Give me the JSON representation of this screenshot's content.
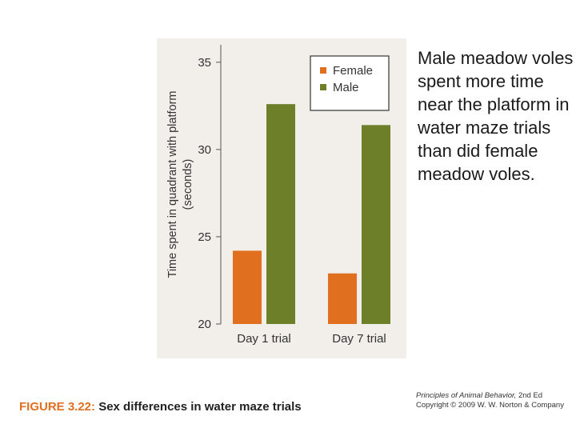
{
  "side_text": "Male meadow voles spent more time near the platform in water maze trials than did female meadow voles.",
  "caption": {
    "figure_number": "FIGURE 3.22:",
    "text": "Sex differences in water maze trials"
  },
  "credit": {
    "book_title": "Principles of Animal Behavior,",
    "edition": "2nd Ed",
    "copyright": "Copyright © 2009 W. W. Norton & Company"
  },
  "colors": {
    "female": "#e07020",
    "male": "#6e7f2a",
    "panel_background": "#f2efea",
    "axis": "#555555"
  },
  "chart_data": {
    "type": "bar",
    "title": "",
    "xlabel": "",
    "ylabel": "Time spent in quadrant with platform (seconds)",
    "categories": [
      "Day 1 trial",
      "Day 7 trial"
    ],
    "series": [
      {
        "name": "Female",
        "values": [
          24.2,
          22.9
        ],
        "color": "#e07020"
      },
      {
        "name": "Male",
        "values": [
          32.6,
          31.4
        ],
        "color": "#6e7f2a"
      }
    ],
    "ylim": [
      20,
      36
    ],
    "yticks": [
      20,
      25,
      30,
      35
    ],
    "grid": false,
    "legend_position": "top-right"
  }
}
